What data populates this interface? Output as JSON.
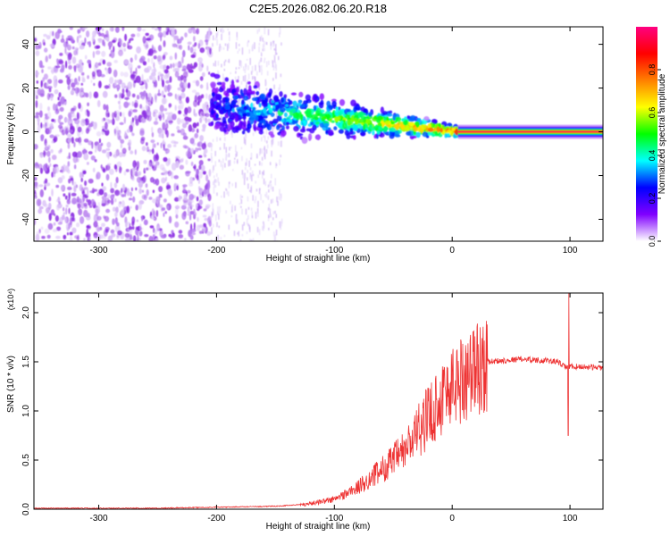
{
  "figure_title": "C2E5.2026.082.06.20.R18",
  "chart_data": [
    {
      "type": "heatmap",
      "xlabel": "Height of straight line (km)",
      "ylabel": "Frequency (Hz)",
      "xlim": [
        -355,
        128
      ],
      "ylim": [
        -50,
        48
      ],
      "x_ticks": [
        -300,
        -200,
        -100,
        0,
        100
      ],
      "y_ticks": [
        -40,
        -20,
        0,
        20,
        40
      ],
      "colorbar": {
        "label": "Normalized spectral amplitude",
        "range": [
          0,
          1
        ],
        "ticks": [
          "0.0",
          "0.2",
          "0.4",
          "0.6",
          "0.8"
        ],
        "tick_values": [
          0,
          0.2,
          0.4,
          0.6,
          0.8
        ],
        "colors": [
          "#ffffff",
          "#8000ff",
          "#0000ff",
          "#00ffff",
          "#00ff00",
          "#ffff00",
          "#ff8000",
          "#ff0000",
          "#ff0080"
        ]
      },
      "regions": [
        {
          "x": [
            -355,
            -205
          ],
          "freq_spread": 48,
          "amplitude": 0.1,
          "description_visible": false
        },
        {
          "x": [
            -205,
            -145
          ],
          "freq_spread": 48,
          "amplitude": 0.04
        },
        {
          "x": [
            -205,
            5
          ],
          "freq_center_start": 12,
          "freq_center_end": 0,
          "amplitude": 0.4
        },
        {
          "x": [
            5,
            128
          ],
          "freq_center": 0,
          "amplitude": 0.95
        }
      ]
    },
    {
      "type": "line",
      "xlabel": "Height of straight line (km)",
      "ylabel": "SNR (10 * v/v)",
      "y_multiplier": "(x10⁴)",
      "xlim": [
        -355,
        128
      ],
      "ylim": [
        0,
        2.2
      ],
      "x_ticks": [
        -300,
        -200,
        -100,
        0,
        100
      ],
      "y_ticks": [
        "0.0",
        "0.5",
        "1.0",
        "1.5",
        "2.0"
      ],
      "y_tick_values": [
        0,
        0.5,
        1.0,
        1.5,
        2.0
      ],
      "series": [
        {
          "color": "#ee3333",
          "x": [
            -355,
            -250,
            -200,
            -150,
            -125,
            -100,
            -80,
            -60,
            -40,
            -20,
            -5,
            10,
            30,
            60,
            90,
            95,
            100,
            110,
            128
          ],
          "values": [
            0.01,
            0.01,
            0.02,
            0.03,
            0.05,
            0.1,
            0.22,
            0.4,
            0.6,
            0.95,
            1.2,
            1.35,
            1.5,
            1.53,
            1.5,
            1.45,
            1.45,
            1.45,
            1.44
          ],
          "spikes": [
            {
              "x": 99,
              "value": 2.2
            },
            {
              "x": 98.5,
              "value": 0.75
            }
          ]
        }
      ]
    }
  ]
}
